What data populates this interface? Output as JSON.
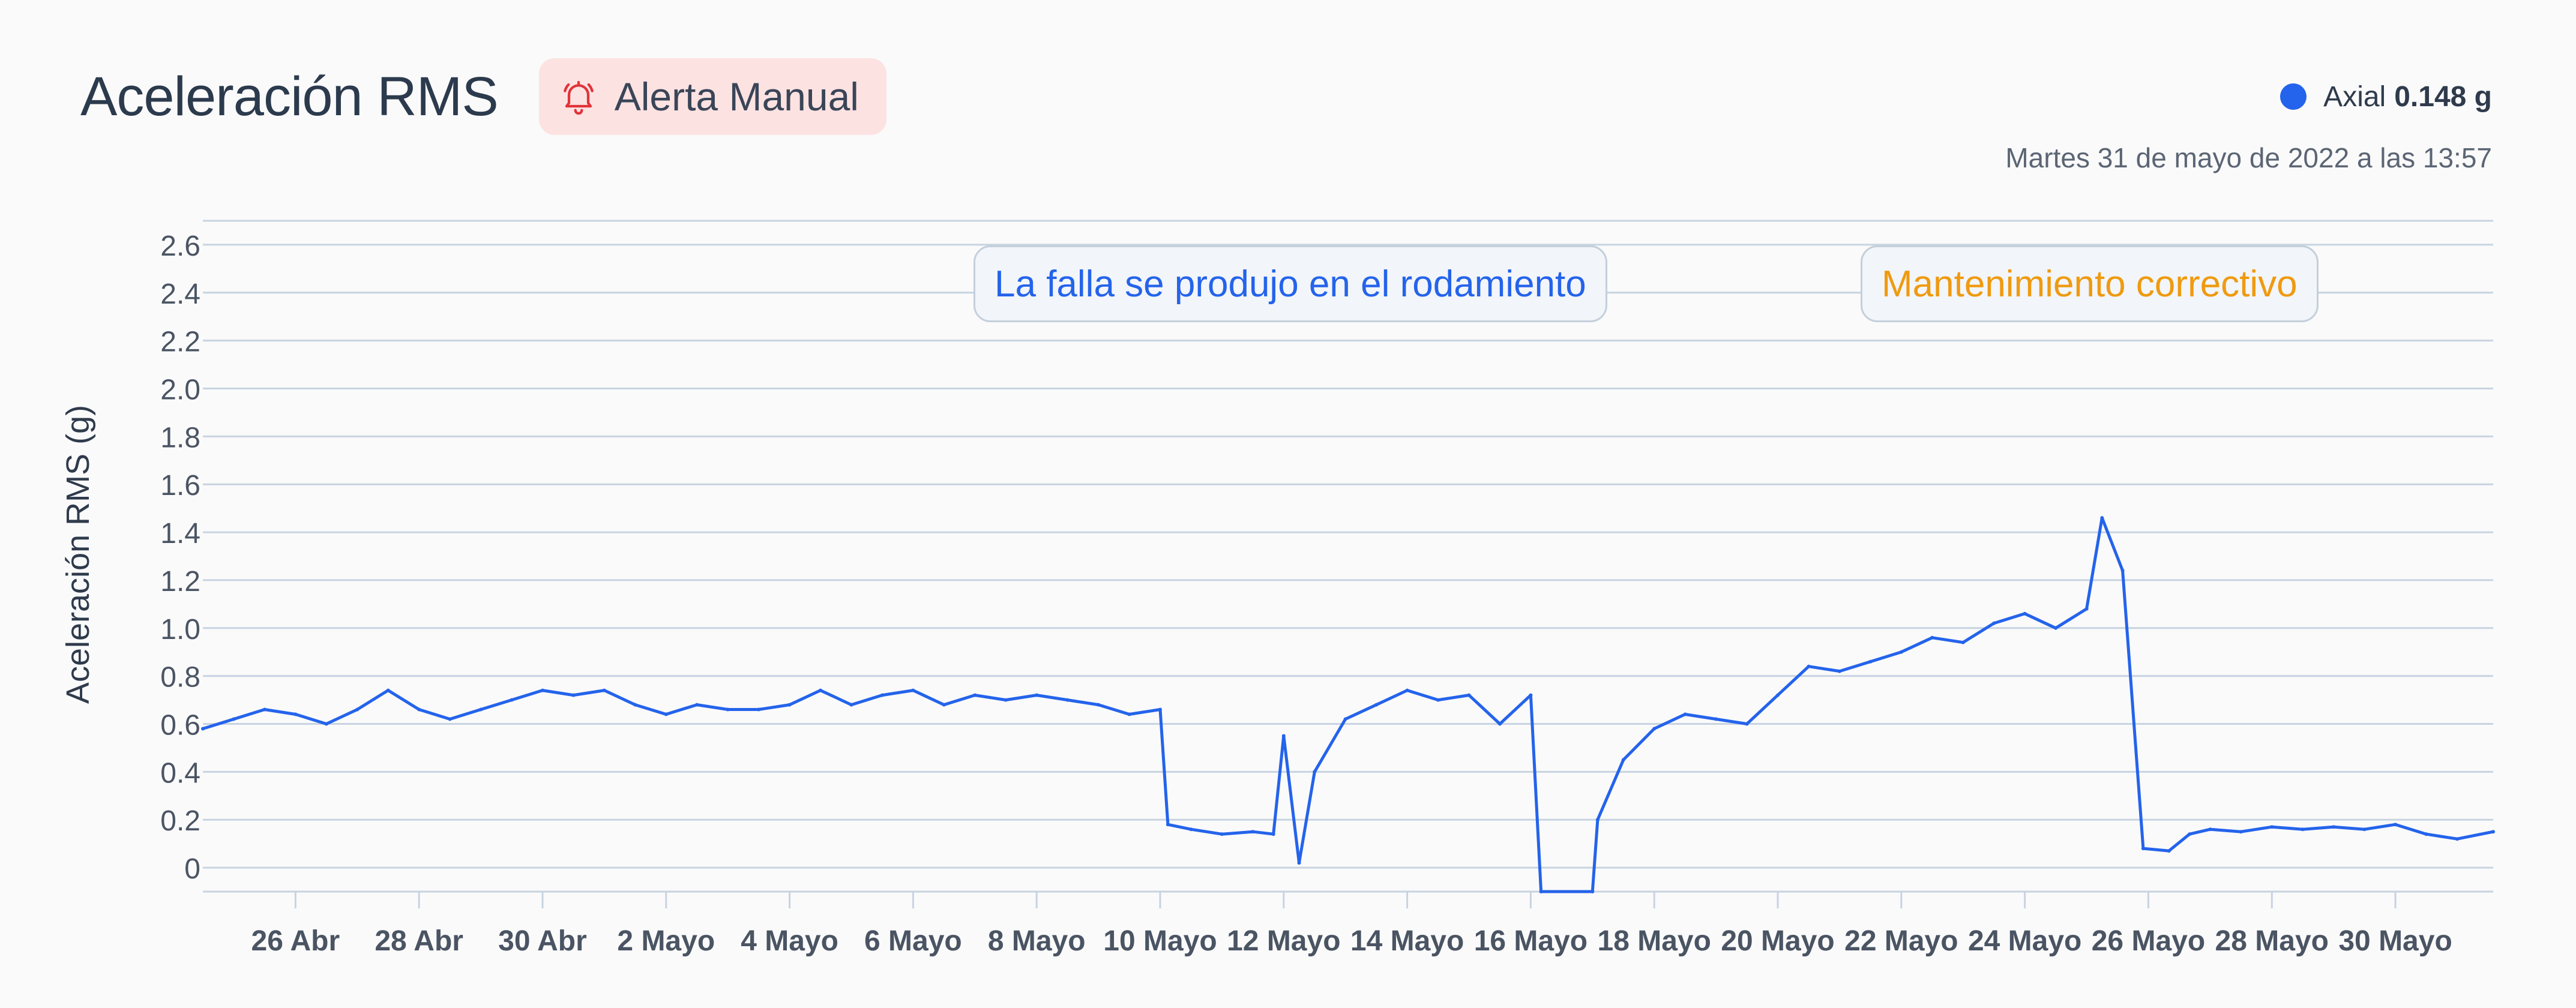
{
  "header": {
    "title": "Aceleración RMS",
    "alert_label": "Alerta Manual",
    "alert_icon": "bell-icon",
    "alert_color": "#e0343a"
  },
  "legend": {
    "series_name": "Axial",
    "series_value": "0.148 g",
    "color": "#2463eb"
  },
  "timestamp": "Martes 31 de mayo de 2022 a las 13:57",
  "annotations": {
    "failure": "La falla se produjo en el rodamiento",
    "maintenance": "Mantenimiento correctivo"
  },
  "chart_data": {
    "type": "line",
    "title": "Aceleración RMS",
    "xlabel": "",
    "ylabel": "Aceleración RMS (g)",
    "ylim": [
      -0.1,
      2.7
    ],
    "yticks": [
      {
        "value": 0,
        "label": "0"
      },
      {
        "value": 0.2,
        "label": "0.2"
      },
      {
        "value": 0.4,
        "label": "0.4"
      },
      {
        "value": 0.6,
        "label": "0.6"
      },
      {
        "value": 0.8,
        "label": "0.8"
      },
      {
        "value": 1.0,
        "label": "1.0"
      },
      {
        "value": 1.2,
        "label": "1.2"
      },
      {
        "value": 1.4,
        "label": "1.4"
      },
      {
        "value": 1.6,
        "label": "1.6"
      },
      {
        "value": 1.8,
        "label": "1.8"
      },
      {
        "value": 2.0,
        "label": "2.0"
      },
      {
        "value": 2.2,
        "label": "2.2"
      },
      {
        "value": 2.4,
        "label": "2.4"
      },
      {
        "value": 2.6,
        "label": "2.6"
      }
    ],
    "xlim": [
      "2022-04-24T12:00",
      "2022-05-31T14:00"
    ],
    "xticks": [
      {
        "date": "2022-04-26",
        "day": "26",
        "month": "Abr"
      },
      {
        "date": "2022-04-28",
        "day": "28",
        "month": "Abr"
      },
      {
        "date": "2022-04-30",
        "day": "30",
        "month": "Abr"
      },
      {
        "date": "2022-05-02",
        "day": "2",
        "month": "Mayo"
      },
      {
        "date": "2022-05-04",
        "day": "4",
        "month": "Mayo"
      },
      {
        "date": "2022-05-06",
        "day": "6",
        "month": "Mayo"
      },
      {
        "date": "2022-05-08",
        "day": "8",
        "month": "Mayo"
      },
      {
        "date": "2022-05-10",
        "day": "10",
        "month": "Mayo"
      },
      {
        "date": "2022-05-12",
        "day": "12",
        "month": "Mayo"
      },
      {
        "date": "2022-05-14",
        "day": "14",
        "month": "Mayo"
      },
      {
        "date": "2022-05-16",
        "day": "16",
        "month": "Mayo"
      },
      {
        "date": "2022-05-18",
        "day": "18",
        "month": "Mayo"
      },
      {
        "date": "2022-05-20",
        "day": "20",
        "month": "Mayo"
      },
      {
        "date": "2022-05-22",
        "day": "22",
        "month": "Mayo"
      },
      {
        "date": "2022-05-24",
        "day": "24",
        "month": "Mayo"
      },
      {
        "date": "2022-05-26",
        "day": "26",
        "month": "Mayo"
      },
      {
        "date": "2022-05-28",
        "day": "28",
        "month": "Mayo"
      },
      {
        "date": "2022-05-30",
        "day": "30",
        "month": "Mayo"
      }
    ],
    "grid": true,
    "legend": "top-right",
    "series": [
      {
        "name": "Axial",
        "color": "#2463eb",
        "points": [
          [
            "2022-04-24T12:00",
            0.58
          ],
          [
            "2022-04-25T00:00",
            0.62
          ],
          [
            "2022-04-25T12:00",
            0.66
          ],
          [
            "2022-04-26T00:00",
            0.64
          ],
          [
            "2022-04-26T12:00",
            0.6
          ],
          [
            "2022-04-27T00:00",
            0.66
          ],
          [
            "2022-04-27T12:00",
            0.74
          ],
          [
            "2022-04-28T00:00",
            0.66
          ],
          [
            "2022-04-28T12:00",
            0.62
          ],
          [
            "2022-04-29T00:00",
            0.66
          ],
          [
            "2022-04-29T12:00",
            0.7
          ],
          [
            "2022-04-30T00:00",
            0.74
          ],
          [
            "2022-04-30T12:00",
            0.72
          ],
          [
            "2022-05-01T00:00",
            0.74
          ],
          [
            "2022-05-01T12:00",
            0.68
          ],
          [
            "2022-05-02T00:00",
            0.64
          ],
          [
            "2022-05-02T12:00",
            0.68
          ],
          [
            "2022-05-03T00:00",
            0.66
          ],
          [
            "2022-05-03T12:00",
            0.66
          ],
          [
            "2022-05-04T00:00",
            0.68
          ],
          [
            "2022-05-04T12:00",
            0.74
          ],
          [
            "2022-05-05T00:00",
            0.68
          ],
          [
            "2022-05-05T12:00",
            0.72
          ],
          [
            "2022-05-06T00:00",
            0.74
          ],
          [
            "2022-05-06T12:00",
            0.68
          ],
          [
            "2022-05-07T00:00",
            0.72
          ],
          [
            "2022-05-07T12:00",
            0.7
          ],
          [
            "2022-05-08T00:00",
            0.72
          ],
          [
            "2022-05-08T12:00",
            0.7
          ],
          [
            "2022-05-09T00:00",
            0.68
          ],
          [
            "2022-05-09T12:00",
            0.64
          ],
          [
            "2022-05-10T00:00",
            0.66
          ],
          [
            "2022-05-10T03:00",
            0.18
          ],
          [
            "2022-05-10T12:00",
            0.16
          ],
          [
            "2022-05-11T00:00",
            0.14
          ],
          [
            "2022-05-11T12:00",
            0.15
          ],
          [
            "2022-05-11T20:00",
            0.14
          ],
          [
            "2022-05-12T00:00",
            0.55
          ],
          [
            "2022-05-12T06:00",
            0.02
          ],
          [
            "2022-05-12T12:00",
            0.4
          ],
          [
            "2022-05-13T00:00",
            0.62
          ],
          [
            "2022-05-13T12:00",
            0.68
          ],
          [
            "2022-05-14T00:00",
            0.74
          ],
          [
            "2022-05-14T12:00",
            0.7
          ],
          [
            "2022-05-15T00:00",
            0.72
          ],
          [
            "2022-05-15T12:00",
            0.6
          ],
          [
            "2022-05-16T00:00",
            0.72
          ],
          [
            "2022-05-16T04:00",
            -0.1
          ],
          [
            "2022-05-17T00:00",
            -0.1
          ],
          [
            "2022-05-17T02:00",
            0.2
          ],
          [
            "2022-05-17T12:00",
            0.45
          ],
          [
            "2022-05-18T00:00",
            0.58
          ],
          [
            "2022-05-18T12:00",
            0.64
          ],
          [
            "2022-05-19T00:00",
            0.62
          ],
          [
            "2022-05-19T12:00",
            0.6
          ],
          [
            "2022-05-20T00:00",
            0.72
          ],
          [
            "2022-05-20T12:00",
            0.84
          ],
          [
            "2022-05-21T00:00",
            0.82
          ],
          [
            "2022-05-21T12:00",
            0.86
          ],
          [
            "2022-05-22T00:00",
            0.9
          ],
          [
            "2022-05-22T12:00",
            0.96
          ],
          [
            "2022-05-23T00:00",
            0.94
          ],
          [
            "2022-05-23T12:00",
            1.02
          ],
          [
            "2022-05-24T00:00",
            1.06
          ],
          [
            "2022-05-24T12:00",
            1.0
          ],
          [
            "2022-05-25T00:00",
            1.08
          ],
          [
            "2022-05-25T06:00",
            1.46
          ],
          [
            "2022-05-25T14:00",
            1.24
          ],
          [
            "2022-05-25T22:00",
            0.08
          ],
          [
            "2022-05-26T08:00",
            0.07
          ],
          [
            "2022-05-26T16:00",
            0.14
          ],
          [
            "2022-05-27T00:00",
            0.16
          ],
          [
            "2022-05-27T12:00",
            0.15
          ],
          [
            "2022-05-28T00:00",
            0.17
          ],
          [
            "2022-05-28T12:00",
            0.16
          ],
          [
            "2022-05-29T00:00",
            0.17
          ],
          [
            "2022-05-29T12:00",
            0.16
          ],
          [
            "2022-05-30T00:00",
            0.18
          ],
          [
            "2022-05-30T12:00",
            0.14
          ],
          [
            "2022-05-31T00:00",
            0.12
          ],
          [
            "2022-05-31T14:00",
            0.15
          ]
        ]
      }
    ],
    "annotations": [
      {
        "text": "La falla se produjo en el rodamiento",
        "x": "2022-05-12T00:00"
      },
      {
        "text": "Mantenimiento correctivo",
        "x": "2022-05-25T06:00"
      }
    ]
  }
}
